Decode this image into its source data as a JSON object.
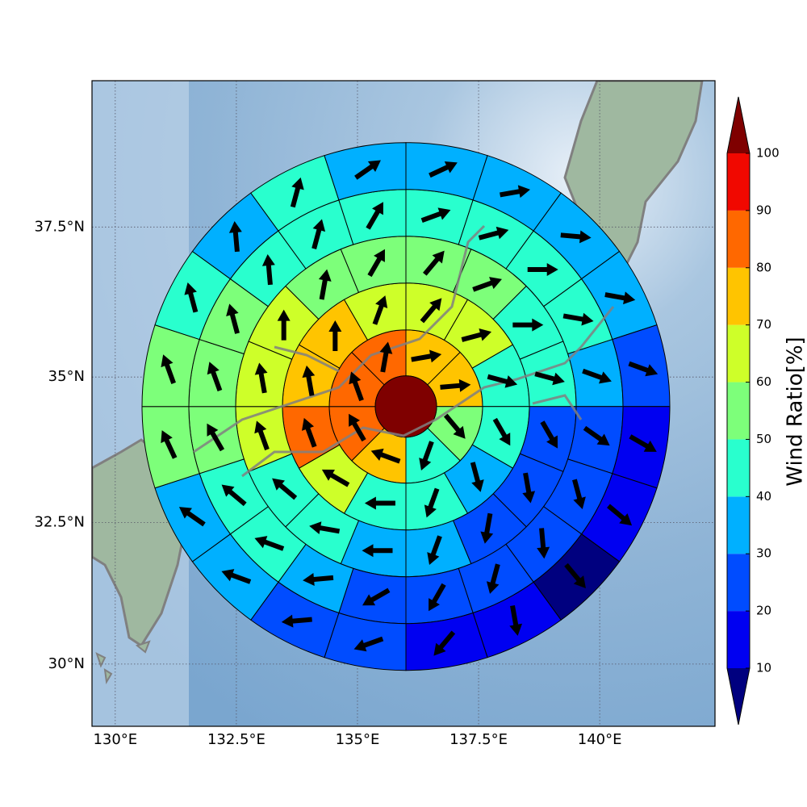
{
  "map": {
    "projection": "mercator",
    "xlim": [
      129.52,
      142.38
    ],
    "ylim": [
      28.88,
      39.86
    ],
    "xticks": [
      {
        "value": 130,
        "label": "130°E"
      },
      {
        "value": 132.5,
        "label": "132.5°E"
      },
      {
        "value": 135,
        "label": "135°E"
      },
      {
        "value": 137.5,
        "label": "137.5°E"
      },
      {
        "value": 140,
        "label": "140°E"
      }
    ],
    "yticks": [
      {
        "value": 30,
        "label": "30°N"
      },
      {
        "value": 32.5,
        "label": "32.5°N"
      },
      {
        "value": 35,
        "label": "35°N"
      },
      {
        "value": 37.5,
        "label": "37.5°N"
      }
    ],
    "grid": true,
    "center": [
      136.0,
      34.5
    ],
    "center_ratio": 105,
    "rings": [
      [
        {
          "ratio": 75,
          "dir": 80
        },
        {
          "ratio": 75,
          "dir": 85
        },
        {
          "ratio": 55,
          "dir": 140
        },
        {
          "ratio": 45,
          "dir": 200
        },
        {
          "ratio": 75,
          "dir": 290
        },
        {
          "ratio": 85,
          "dir": 330
        },
        {
          "ratio": 85,
          "dir": 340
        },
        {
          "ratio": 85,
          "dir": 10
        }
      ],
      [
        {
          "ratio": 65,
          "dir": 40
        },
        {
          "ratio": 65,
          "dir": 75
        },
        {
          "ratio": 45,
          "dir": 105
        },
        {
          "ratio": 45,
          "dir": 150
        },
        {
          "ratio": 35,
          "dir": 165
        },
        {
          "ratio": 45,
          "dir": 200
        },
        {
          "ratio": 45,
          "dir": 270
        },
        {
          "ratio": 65,
          "dir": 300
        },
        {
          "ratio": 85,
          "dir": 340
        },
        {
          "ratio": 75,
          "dir": 350
        },
        {
          "ratio": 75,
          "dir": 0
        },
        {
          "ratio": 65,
          "dir": 20
        }
      ],
      [
        {
          "ratio": 55,
          "dir": 40
        },
        {
          "ratio": 55,
          "dir": 70
        },
        {
          "ratio": 45,
          "dir": 90
        },
        {
          "ratio": 45,
          "dir": 105
        },
        {
          "ratio": 25,
          "dir": 150
        },
        {
          "ratio": 25,
          "dir": 170
        },
        {
          "ratio": 25,
          "dir": 190
        },
        {
          "ratio": 35,
          "dir": 200
        },
        {
          "ratio": 35,
          "dir": 270
        },
        {
          "ratio": 45,
          "dir": 280
        },
        {
          "ratio": 45,
          "dir": 310
        },
        {
          "ratio": 65,
          "dir": 340
        },
        {
          "ratio": 65,
          "dir": 350
        },
        {
          "ratio": 65,
          "dir": 0
        },
        {
          "ratio": 55,
          "dir": 10
        },
        {
          "ratio": 55,
          "dir": 30
        }
      ],
      [
        {
          "ratio": 45,
          "dir": 70
        },
        {
          "ratio": 45,
          "dir": 75
        },
        {
          "ratio": 45,
          "dir": 90
        },
        {
          "ratio": 45,
          "dir": 100
        },
        {
          "ratio": 35,
          "dir": 110
        },
        {
          "ratio": 25,
          "dir": 125
        },
        {
          "ratio": 25,
          "dir": 165
        },
        {
          "ratio": 25,
          "dir": 175
        },
        {
          "ratio": 25,
          "dir": 195
        },
        {
          "ratio": 25,
          "dir": 210
        },
        {
          "ratio": 25,
          "dir": 240
        },
        {
          "ratio": 35,
          "dir": 265
        },
        {
          "ratio": 45,
          "dir": 290
        },
        {
          "ratio": 45,
          "dir": 310
        },
        {
          "ratio": 55,
          "dir": 330
        },
        {
          "ratio": 55,
          "dir": 340
        },
        {
          "ratio": 55,
          "dir": 345
        },
        {
          "ratio": 45,
          "dir": 355
        },
        {
          "ratio": 45,
          "dir": 15
        },
        {
          "ratio": 45,
          "dir": 30
        }
      ],
      [
        {
          "ratio": 35,
          "dir": 65
        },
        {
          "ratio": 35,
          "dir": 80
        },
        {
          "ratio": 35,
          "dir": 95
        },
        {
          "ratio": 35,
          "dir": 100
        },
        {
          "ratio": 25,
          "dir": 110
        },
        {
          "ratio": 15,
          "dir": 120
        },
        {
          "ratio": 15,
          "dir": 130
        },
        {
          "ratio": 5,
          "dir": 140
        },
        {
          "ratio": 15,
          "dir": 170
        },
        {
          "ratio": 15,
          "dir": 220
        },
        {
          "ratio": 25,
          "dir": 250
        },
        {
          "ratio": 25,
          "dir": 265
        },
        {
          "ratio": 35,
          "dir": 290
        },
        {
          "ratio": 35,
          "dir": 305
        },
        {
          "ratio": 55,
          "dir": 335
        },
        {
          "ratio": 55,
          "dir": 340
        },
        {
          "ratio": 45,
          "dir": 345
        },
        {
          "ratio": 35,
          "dir": 355
        },
        {
          "ratio": 45,
          "dir": 15
        },
        {
          "ratio": 35,
          "dir": 55
        }
      ]
    ]
  },
  "colorbar": {
    "label": "Wind Ratio[%]",
    "ticks": [
      10,
      20,
      30,
      40,
      50,
      60,
      70,
      80,
      90,
      100
    ],
    "colors": [
      "#0000f1",
      "#004cff",
      "#00b0ff",
      "#29ffce",
      "#7dff7a",
      "#ceff29",
      "#ffc400",
      "#ff6800",
      "#f10800"
    ],
    "under_color": "#00007f",
    "over_color": "#7f0000"
  }
}
